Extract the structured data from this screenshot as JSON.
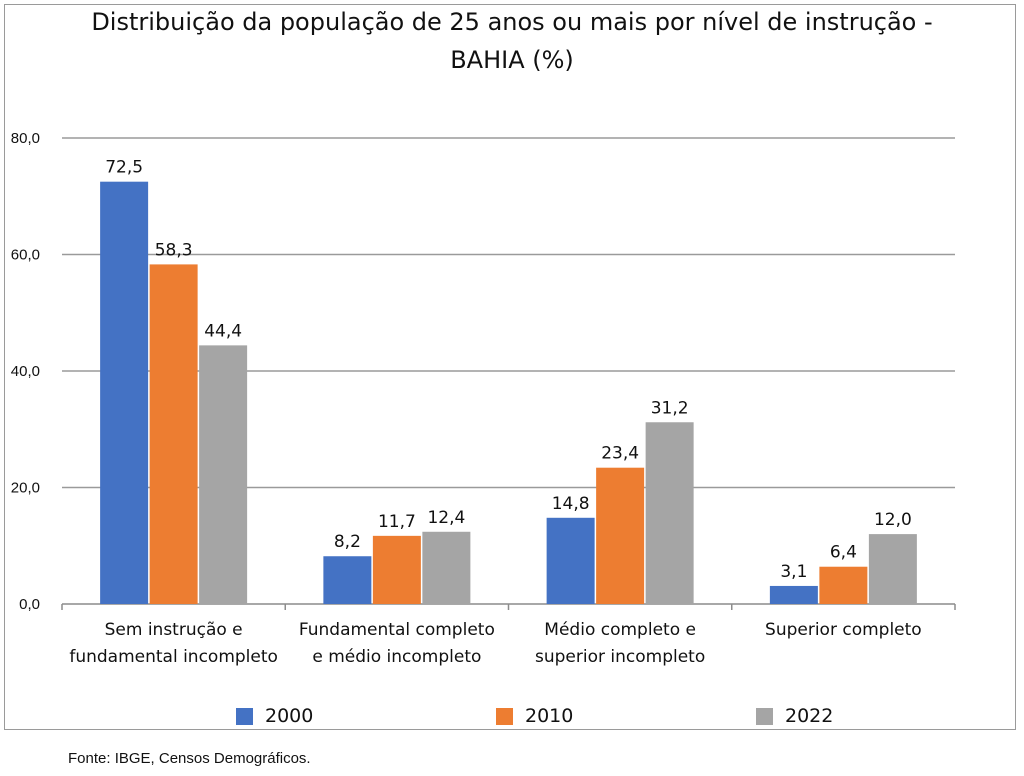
{
  "title_lines": [
    "Distribuição da população de 25 anos ou mais por nível de instrução -",
    "BAHIA (%)"
  ],
  "source": "Fonte: IBGE, Censos Demográficos.",
  "chart_data": {
    "type": "bar",
    "title": "Distribuição da população de 25 anos ou mais por nível de instrução - BAHIA (%)",
    "categories": [
      [
        "Sem instrução e",
        "fundamental incompleto"
      ],
      [
        "Fundamental completo",
        "e médio incompleto"
      ],
      [
        "Médio completo e",
        "superior incompleto"
      ],
      [
        "Superior completo"
      ]
    ],
    "series": [
      {
        "name": "2000",
        "color": "#4472C4",
        "values": [
          72.5,
          8.2,
          14.8,
          3.1
        ],
        "labels": [
          "72,5",
          "8,2",
          "14,8",
          "3,1"
        ]
      },
      {
        "name": "2010",
        "color": "#ED7D31",
        "values": [
          58.3,
          11.7,
          23.4,
          6.4
        ],
        "labels": [
          "58,3",
          "11,7",
          "23,4",
          "6,4"
        ]
      },
      {
        "name": "2022",
        "color": "#A5A5A5",
        "values": [
          44.4,
          12.4,
          31.2,
          12.0
        ],
        "labels": [
          "44,4",
          "12,4",
          "31,2",
          "12,0"
        ]
      }
    ],
    "yticks": [
      0,
      20,
      40,
      60,
      80
    ],
    "ytick_labels": [
      "0,0",
      "20,0",
      "40,0",
      "60,0",
      "80,0"
    ],
    "ylim": [
      0,
      80
    ],
    "grid": true,
    "legend_position": "bottom",
    "xlabel": "",
    "ylabel": ""
  }
}
